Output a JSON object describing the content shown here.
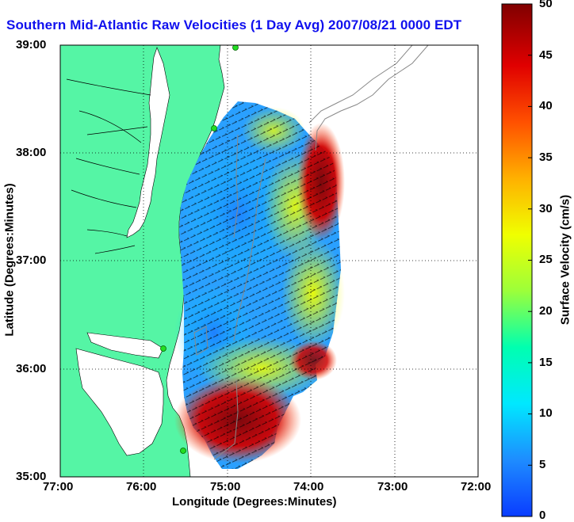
{
  "title": "Southern Mid-Atlantic Raw Velocities (1 Day Avg) 2007/08/21 0000 EDT",
  "x_axis": {
    "label": "Longitude (Degrees:Minutes)",
    "ticks": [
      "77:00",
      "76:00",
      "75:00",
      "74:00",
      "73:00",
      "72:00"
    ]
  },
  "y_axis": {
    "label": "Latitude (Degrees:Minutes)",
    "ticks": [
      "39:00",
      "38:00",
      "37:00",
      "36:00",
      "35:00"
    ]
  },
  "colorbar": {
    "label": "Surface Velocity (cm/s)",
    "range": [
      0,
      50
    ],
    "ticks": [
      "50",
      "45",
      "40",
      "35",
      "30",
      "25",
      "20",
      "15",
      "10",
      "5",
      "0"
    ],
    "colors": [
      "#0a3cff",
      "#1e8cff",
      "#00e8ff",
      "#00ffb0",
      "#9cff3a",
      "#f0ff00",
      "#ffb000",
      "#ff5000",
      "#e00000",
      "#800000"
    ]
  },
  "map": {
    "land_color": "#55f5a5",
    "ocean_color": "#ffffff",
    "grid": "dotted",
    "site_color": "#22dd22"
  }
}
